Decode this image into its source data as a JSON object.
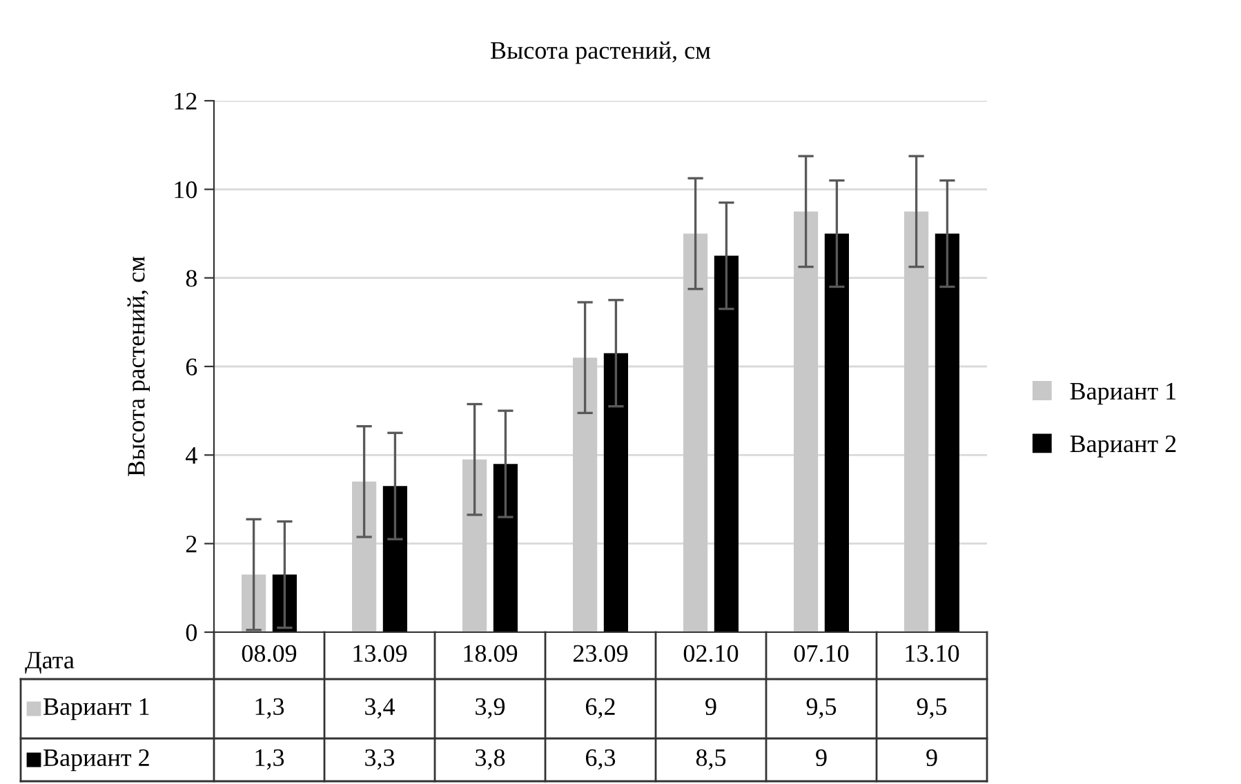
{
  "chart_data": {
    "type": "bar",
    "title": "Высота растений, см",
    "ylabel": "Высота растений, см",
    "categories": [
      "08.09",
      "13.09",
      "18.09",
      "23.09",
      "02.10",
      "07.10",
      "13.10"
    ],
    "series": [
      {
        "name": "Вариант 1",
        "color": "#c8c8c8",
        "values": [
          1.3,
          3.4,
          3.9,
          6.2,
          9,
          9.5,
          9.5
        ],
        "errors": [
          1.25,
          1.25,
          1.25,
          1.25,
          1.25,
          1.25,
          1.25
        ],
        "value_labels": [
          "1,3",
          "3,4",
          "3,9",
          "6,2",
          "9",
          "9,5",
          "9,5"
        ]
      },
      {
        "name": "Вариант 2",
        "color": "#000000",
        "values": [
          1.3,
          3.3,
          3.8,
          6.3,
          8.5,
          9,
          9
        ],
        "errors": [
          1.2,
          1.2,
          1.2,
          1.2,
          1.2,
          1.2,
          1.2
        ],
        "value_labels": [
          "1,3",
          "3,3",
          "3,8",
          "6,3",
          "8,5",
          "9",
          "9"
        ]
      }
    ],
    "ylim": [
      0,
      12
    ],
    "yticks": [
      0,
      2,
      4,
      6,
      8,
      10,
      12
    ],
    "grid": "y",
    "legend": "right",
    "tick_labels": "y",
    "annotations": [
      "Дата"
    ]
  }
}
